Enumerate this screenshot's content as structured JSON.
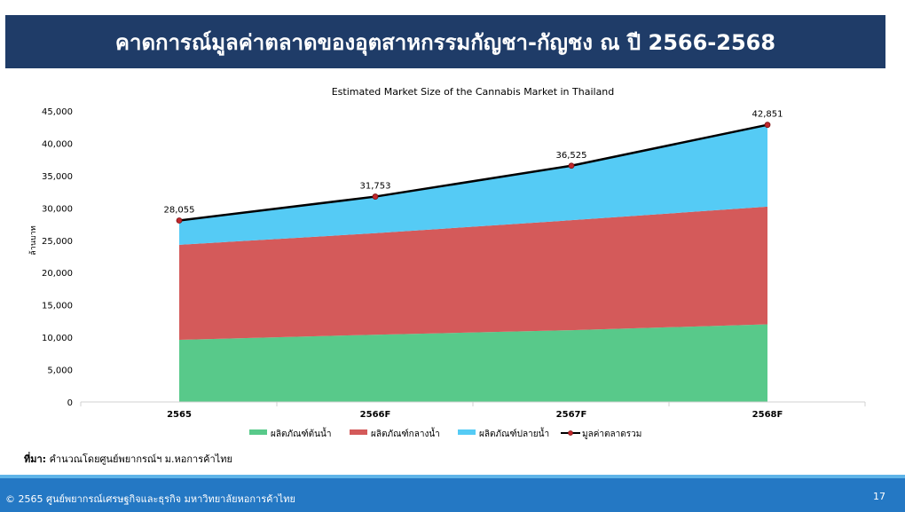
{
  "header": {
    "title": "คาดการณ์มูลค่าตลาดของอุตสาหกรรมกัญชา-กัญชง ณ ปี 2566-2568"
  },
  "chart_data": {
    "type": "area",
    "title": "Estimated Market Size of the Cannabis Market in Thailand",
    "ylabel": "ล้านบาท",
    "xlabel": "",
    "categories": [
      "2565",
      "2566F",
      "2567F",
      "2568F"
    ],
    "ylim": [
      0,
      45000
    ],
    "yticks": [
      0,
      5000,
      10000,
      15000,
      20000,
      25000,
      30000,
      35000,
      40000,
      45000
    ],
    "ytick_labels": [
      "0",
      "5,000",
      "10,000",
      "15,000",
      "20,000",
      "25,000",
      "30,000",
      "35,000",
      "40,000",
      "45,000"
    ],
    "stacked": true,
    "series": [
      {
        "name": "ผลิตภัณฑ์ต้นน้ำ",
        "type": "area",
        "color": "#58c98a",
        "values": [
          9600,
          10400,
          11100,
          12000
        ]
      },
      {
        "name": "ผลิตภัณฑ์กลางน้ำ",
        "type": "area",
        "color": "#d45a5a",
        "values": [
          14700,
          15700,
          17000,
          18200
        ]
      },
      {
        "name": "ผลิตภัณฑ์ปลายน้ำ",
        "type": "area",
        "color": "#55cbf5",
        "values": [
          3755,
          5653,
          8425,
          12651
        ]
      },
      {
        "name": "มูลค่าตลาดรวม",
        "type": "line",
        "color": "#000000",
        "marker_color": "#c0282d",
        "values": [
          28055,
          31753,
          36525,
          42851
        ]
      }
    ],
    "data_labels": [
      "28,055",
      "31,753",
      "36,525",
      "42,851"
    ],
    "grid": false,
    "legend": "bottom"
  },
  "source": {
    "label": "ที่มา:",
    "text": " คำนวณโดยศูนย์พยากรณ์ฯ ม.หอการค้าไทย"
  },
  "footer": {
    "copyright": "© 2565 ศูนย์พยากรณ์เศรษฐกิจและธุรกิจ มหาวิทยาลัยหอการค้าไทย",
    "page_number": "17"
  }
}
